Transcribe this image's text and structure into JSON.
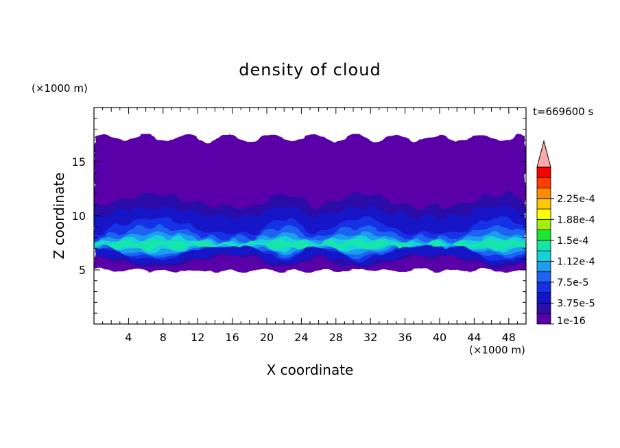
{
  "chart_data": {
    "type": "heatmap",
    "title": "density of cloud",
    "xlabel": "X coordinate",
    "ylabel": "Z coordinate",
    "x_unit": "(×1000 m)",
    "y_unit": "(×1000 m)",
    "time_label": "t=669600 s",
    "xlim": [
      0,
      50
    ],
    "ylim": [
      0,
      20
    ],
    "x_ticks": [
      4,
      8,
      12,
      16,
      20,
      24,
      28,
      32,
      36,
      40,
      44,
      48
    ],
    "y_ticks": [
      5,
      10,
      15
    ],
    "colorbar": {
      "levels": [
        "1e-16",
        "",
        "3.75e-5",
        "",
        "7.5e-5",
        "",
        "1.12e-4",
        "",
        "1.5e-4",
        "",
        "1.88e-4",
        "",
        "2.25e-4",
        ""
      ],
      "colors": [
        "#5a00a8",
        "#2c0ea8",
        "#1414c8",
        "#1430e6",
        "#1e64f0",
        "#1e9cf0",
        "#14d2dc",
        "#14e6aa",
        "#1ee632",
        "#a0f014",
        "#ffff00",
        "#ffc800",
        "#ff8c00",
        "#ff3c00",
        "#ff0000"
      ],
      "extend_color": "#ffaaaa",
      "labels": [
        "1e-16",
        "3.75e-5",
        "7.5e-5",
        "1.12e-4",
        "1.5e-4",
        "1.88e-4",
        "2.25e-4"
      ]
    },
    "cloud_layers": [
      {
        "level": 0,
        "bottom": 4.9,
        "top": 17.2
      },
      {
        "level": 1,
        "bottom": 5.2,
        "top": 12.0
      },
      {
        "level": 2,
        "bottom": 5.6,
        "top": 10.8
      },
      {
        "level": 3,
        "bottom": 5.9,
        "top": 9.8
      },
      {
        "level": 4,
        "bottom": 6.2,
        "top": 9.0
      },
      {
        "level": 5,
        "bottom": 6.5,
        "top": 8.4
      },
      {
        "level": 6,
        "bottom": 6.8,
        "top": 8.0
      },
      {
        "level": 7,
        "bottom": 7.0,
        "top": 7.7
      }
    ]
  }
}
